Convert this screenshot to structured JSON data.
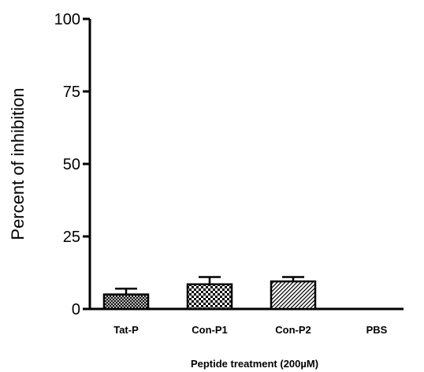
{
  "chart_data": {
    "type": "bar",
    "categories": [
      "Tat-P",
      "Con-P1",
      "Con-P2",
      "PBS"
    ],
    "values": [
      5,
      8.5,
      9.5,
      0
    ],
    "errors": [
      2,
      2.5,
      1.5,
      0
    ],
    "patterns": [
      "crosshatch-fine",
      "checker",
      "diagonal",
      "none"
    ],
    "xlabel": "Peptide treatment (200µM)",
    "ylabel": "Percent of inhibition",
    "ylim": [
      0,
      100
    ],
    "yticks": [
      "0",
      "25",
      "50",
      "75",
      "100"
    ],
    "grid": false,
    "legend": "none"
  }
}
